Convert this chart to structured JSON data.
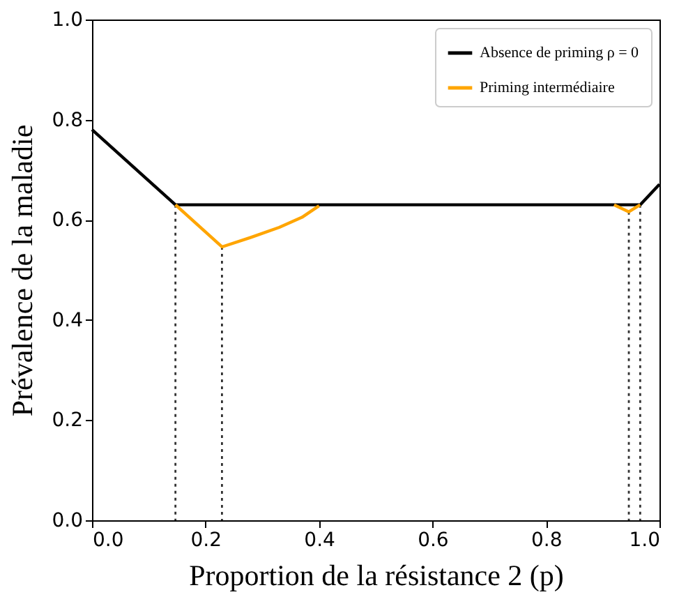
{
  "chart_data": {
    "type": "line",
    "xlabel": "Proportion de la résistance 2 (p)",
    "ylabel": "Prévalence de la maladie",
    "xlim": [
      0,
      1
    ],
    "ylim": [
      0,
      1
    ],
    "xticks": [
      {
        "value": 0,
        "label": "0.0"
      },
      0.2,
      0.4,
      0.6,
      0.8,
      {
        "value": 1,
        "label": "1.0"
      }
    ],
    "yticks": [
      {
        "value": 0,
        "label": "0.0"
      },
      0.2,
      0.4,
      0.6,
      0.8,
      {
        "value": 1,
        "label": "1.0"
      }
    ],
    "grid": false,
    "legend": "top right",
    "marker": "none",
    "series": [
      {
        "type": "line",
        "line_style": "dotted",
        "color": "#333333",
        "x": [
          0.147,
          0.147
        ],
        "values": [
          0,
          0.63
        ]
      },
      {
        "type": "line",
        "line_style": "dotted",
        "color": "#333333",
        "x": [
          0.229,
          0.229
        ],
        "values": [
          0,
          0.546
        ]
      },
      {
        "type": "line",
        "line_style": "dotted",
        "color": "#333333",
        "x": [
          0.946,
          0.946
        ],
        "values": [
          0,
          0.616
        ]
      },
      {
        "type": "line",
        "line_style": "dotted",
        "color": "#333333",
        "x": [
          0.966,
          0.966
        ],
        "values": [
          0,
          0.63
        ]
      },
      {
        "name": "Absence de priming ρ = 0",
        "color": "#000000",
        "line_style": "solid",
        "x": [
          0,
          0.147,
          0.966,
          1
        ],
        "values": [
          0.78,
          0.63,
          0.63,
          0.671
        ]
      },
      {
        "name": "Priming intermédiaire",
        "color": "#ffa500",
        "line_style": "solid",
        "x": [
          0.147,
          0.229,
          0.28,
          0.33,
          0.37,
          0.4,
          0.6,
          0.92,
          0.946,
          0.966
        ],
        "values": [
          0.63,
          0.546,
          0.565,
          0.585,
          0.605,
          0.628,
          null,
          0.63,
          0.616,
          0.63
        ]
      }
    ]
  }
}
